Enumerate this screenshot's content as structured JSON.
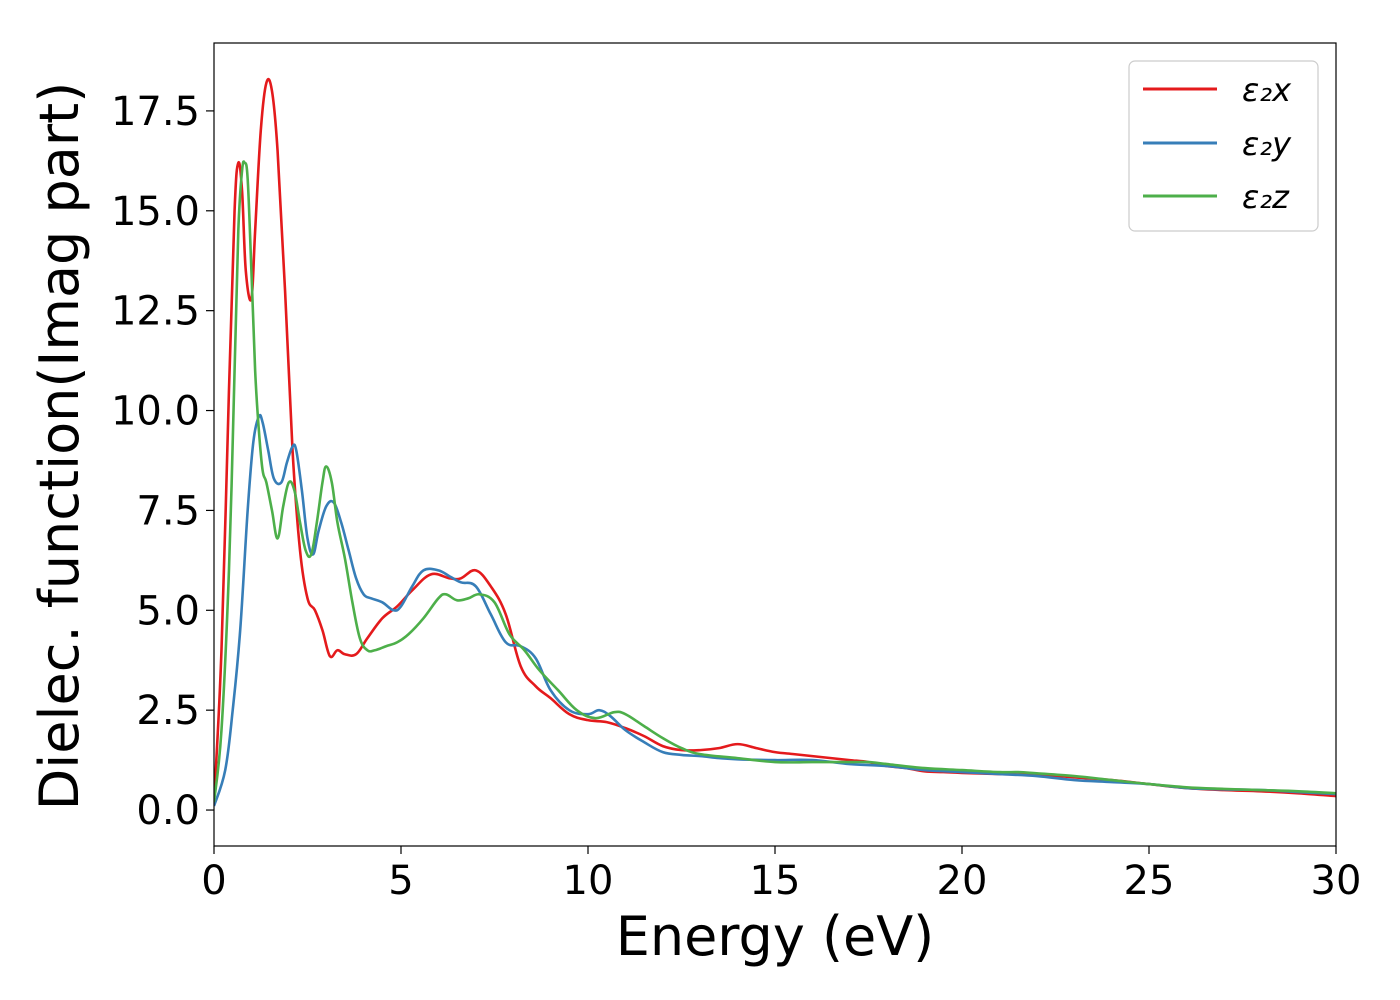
{
  "chart_data": {
    "type": "line",
    "xlabel": "Energy (eV)",
    "ylabel": "Dielec. function(Imag part)",
    "xlim": [
      0,
      30
    ],
    "ylim": [
      -0.9,
      19.2
    ],
    "x_ticks": [
      "0",
      "5",
      "10",
      "15",
      "20",
      "25",
      "30"
    ],
    "x_tick_values": [
      0,
      5,
      10,
      15,
      20,
      25,
      30
    ],
    "y_ticks": [
      "0.0",
      "2.5",
      "5.0",
      "7.5",
      "10.0",
      "12.5",
      "15.0",
      "17.5"
    ],
    "y_tick_values": [
      0,
      2.5,
      5,
      7.5,
      10,
      12.5,
      15,
      17.5
    ],
    "grid": false,
    "legend_position": "top-right",
    "series": [
      {
        "name": "ε₂x",
        "color": "#e41a1c",
        "x": [
          0,
          0.2,
          0.4,
          0.55,
          0.65,
          0.75,
          0.85,
          1.0,
          1.1,
          1.25,
          1.4,
          1.55,
          1.7,
          1.9,
          2.1,
          2.3,
          2.5,
          2.7,
          2.9,
          3.1,
          3.3,
          3.5,
          3.8,
          4.1,
          4.5,
          4.9,
          5.3,
          5.8,
          6.3,
          6.6,
          7.0,
          7.4,
          7.8,
          8.2,
          8.6,
          9.0,
          9.5,
          10.0,
          10.5,
          11.0,
          11.5,
          12.0,
          12.5,
          13.0,
          13.5,
          14.0,
          14.5,
          15.0,
          15.5,
          16.0,
          16.5,
          17.0,
          17.5,
          18.0,
          18.5,
          19.0,
          19.5,
          20.0,
          21.0,
          22.0,
          23.0,
          24.0,
          25.0,
          26.0,
          27.0,
          28.0,
          29.0,
          30.0
        ],
        "values": [
          0.2,
          4.0,
          10.5,
          15.0,
          16.2,
          15.5,
          13.5,
          12.8,
          14.5,
          17.0,
          18.2,
          18.0,
          16.5,
          13.0,
          9.0,
          6.5,
          5.3,
          5.0,
          4.5,
          3.85,
          4.0,
          3.9,
          3.9,
          4.3,
          4.8,
          5.1,
          5.5,
          5.9,
          5.8,
          5.8,
          6.0,
          5.6,
          4.9,
          3.6,
          3.1,
          2.8,
          2.4,
          2.25,
          2.2,
          2.05,
          1.85,
          1.6,
          1.5,
          1.5,
          1.55,
          1.65,
          1.55,
          1.45,
          1.4,
          1.35,
          1.3,
          1.25,
          1.2,
          1.1,
          1.05,
          0.97,
          0.95,
          0.93,
          0.9,
          0.88,
          0.82,
          0.75,
          0.65,
          0.55,
          0.5,
          0.47,
          0.42,
          0.35
        ]
      },
      {
        "name": "ε₂y",
        "color": "#377eb8",
        "x": [
          0,
          0.3,
          0.5,
          0.7,
          0.9,
          1.05,
          1.2,
          1.3,
          1.45,
          1.6,
          1.8,
          1.95,
          2.1,
          2.2,
          2.35,
          2.5,
          2.65,
          2.8,
          3.0,
          3.2,
          3.4,
          3.6,
          3.8,
          4.0,
          4.2,
          4.5,
          4.8,
          5.0,
          5.3,
          5.6,
          6.0,
          6.3,
          6.6,
          7.0,
          7.4,
          7.8,
          8.2,
          8.6,
          9.0,
          9.5,
          10.0,
          10.3,
          10.6,
          11.0,
          11.5,
          12.0,
          12.5,
          13.0,
          13.5,
          14.0,
          15.0,
          16.0,
          17.0,
          18.0,
          19.0,
          20.0,
          21.0,
          22.0,
          23.0,
          24.0,
          25.0,
          26.0,
          27.0,
          28.0,
          29.0,
          30.0
        ],
        "values": [
          0.1,
          1.0,
          2.5,
          4.5,
          7.5,
          9.2,
          9.85,
          9.7,
          9.0,
          8.3,
          8.2,
          8.7,
          9.1,
          9.0,
          8.0,
          6.8,
          6.4,
          7.0,
          7.6,
          7.7,
          7.2,
          6.5,
          5.8,
          5.4,
          5.3,
          5.2,
          5.0,
          5.1,
          5.6,
          6.0,
          6.0,
          5.85,
          5.7,
          5.6,
          4.9,
          4.2,
          4.1,
          3.8,
          3.0,
          2.5,
          2.4,
          2.5,
          2.35,
          2.0,
          1.7,
          1.45,
          1.38,
          1.35,
          1.3,
          1.27,
          1.25,
          1.25,
          1.15,
          1.1,
          1.0,
          0.95,
          0.9,
          0.85,
          0.75,
          0.7,
          0.65,
          0.55,
          0.52,
          0.5,
          0.45,
          0.4
        ]
      },
      {
        "name": "ε₂z",
        "color": "#4daf4a",
        "x": [
          0,
          0.2,
          0.4,
          0.55,
          0.65,
          0.75,
          0.82,
          0.9,
          1.0,
          1.1,
          1.2,
          1.3,
          1.4,
          1.55,
          1.7,
          1.85,
          2.0,
          2.15,
          2.3,
          2.45,
          2.6,
          2.75,
          2.9,
          3.0,
          3.15,
          3.3,
          3.5,
          3.7,
          3.9,
          4.1,
          4.3,
          4.6,
          4.9,
          5.2,
          5.6,
          6.0,
          6.2,
          6.5,
          6.8,
          7.1,
          7.5,
          7.9,
          8.3,
          8.7,
          9.2,
          9.7,
          10.2,
          10.7,
          11.0,
          11.5,
          12.0,
          12.5,
          13.0,
          14.0,
          15.0,
          16.0,
          17.0,
          17.5,
          18.0,
          19.0,
          20.0,
          21.0,
          21.5,
          22.0,
          23.0,
          24.0,
          25.0,
          26.0,
          27.0,
          28.0,
          29.0,
          30.0
        ],
        "values": [
          0.2,
          2.0,
          6.0,
          11.0,
          14.5,
          16.0,
          16.2,
          15.8,
          13.5,
          11.0,
          9.5,
          8.5,
          8.2,
          7.5,
          6.8,
          7.6,
          8.2,
          8.0,
          7.2,
          6.5,
          6.4,
          7.2,
          8.2,
          8.6,
          8.2,
          7.2,
          6.3,
          5.2,
          4.3,
          4.0,
          4.0,
          4.1,
          4.2,
          4.4,
          4.8,
          5.3,
          5.4,
          5.25,
          5.3,
          5.4,
          5.2,
          4.4,
          4.0,
          3.5,
          3.0,
          2.5,
          2.3,
          2.45,
          2.4,
          2.1,
          1.8,
          1.55,
          1.4,
          1.3,
          1.2,
          1.2,
          1.2,
          1.2,
          1.15,
          1.05,
          1.0,
          0.95,
          0.95,
          0.92,
          0.85,
          0.75,
          0.65,
          0.57,
          0.53,
          0.5,
          0.47,
          0.42
        ]
      }
    ]
  }
}
